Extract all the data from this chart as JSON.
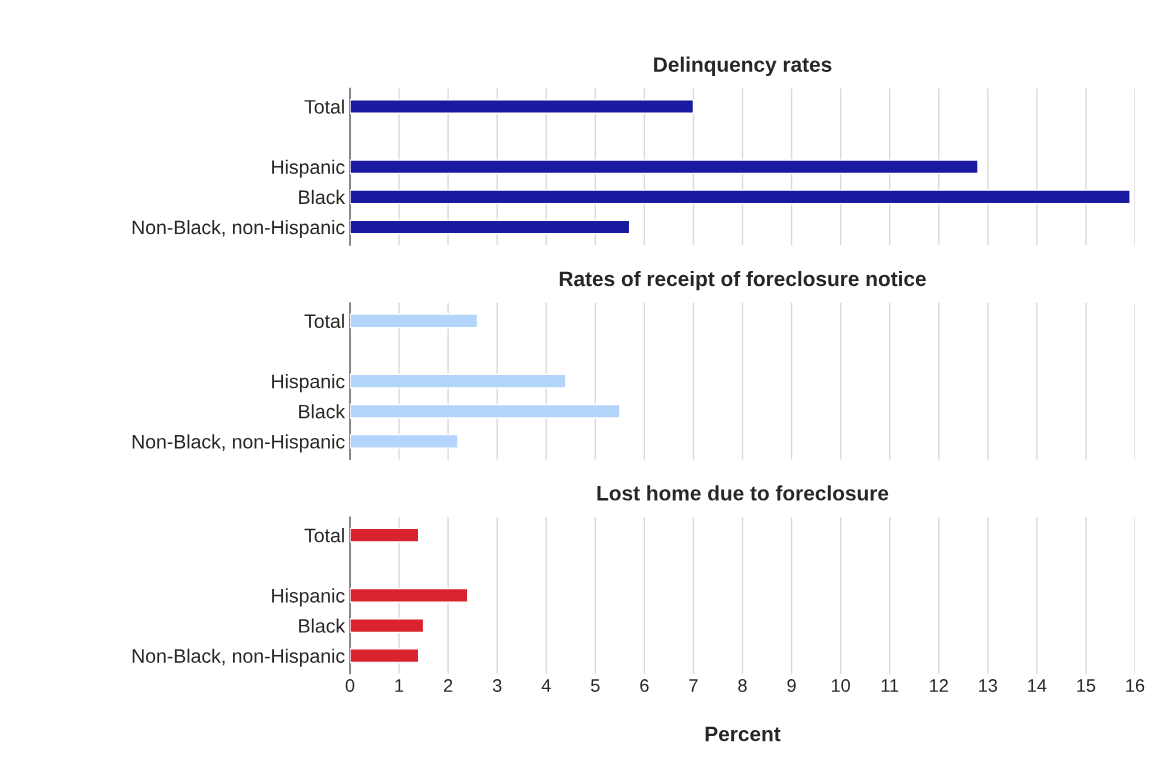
{
  "chart_data": [
    {
      "type": "bar",
      "orientation": "horizontal",
      "title": "Delinquency rates",
      "categories": [
        "Total",
        null,
        "Hispanic",
        "Black",
        "Non-Black, non-Hispanic"
      ],
      "values": [
        7.0,
        null,
        12.8,
        15.9,
        5.7
      ],
      "color": "#1a1aa0",
      "xlim": [
        0,
        16
      ],
      "xticks": [
        0,
        1,
        2,
        3,
        4,
        5,
        6,
        7,
        8,
        9,
        10,
        11,
        12,
        13,
        14,
        15,
        16
      ],
      "grid": "x",
      "tick_labels": "y"
    },
    {
      "type": "bar",
      "orientation": "horizontal",
      "title": "Rates of receipt of foreclosure notice",
      "categories": [
        "Total",
        null,
        "Hispanic",
        "Black",
        "Non-Black, non-Hispanic"
      ],
      "values": [
        2.6,
        null,
        4.4,
        5.5,
        2.2
      ],
      "color": "#b3d4fb",
      "xlim": [
        0,
        16
      ],
      "xticks": [
        0,
        1,
        2,
        3,
        4,
        5,
        6,
        7,
        8,
        9,
        10,
        11,
        12,
        13,
        14,
        15,
        16
      ],
      "grid": "x",
      "tick_labels": "y"
    },
    {
      "type": "bar",
      "orientation": "horizontal",
      "title": "Lost home due to foreclosure",
      "xlabel": "Percent",
      "categories": [
        "Total",
        null,
        "Hispanic",
        "Black",
        "Non-Black, non-Hispanic"
      ],
      "values": [
        1.4,
        null,
        2.4,
        1.5,
        1.4
      ],
      "color": "#d9232e",
      "xlim": [
        0,
        16
      ],
      "xticks": [
        0,
        1,
        2,
        3,
        4,
        5,
        6,
        7,
        8,
        9,
        10,
        11,
        12,
        13,
        14,
        15,
        16
      ],
      "grid": "x"
    }
  ]
}
